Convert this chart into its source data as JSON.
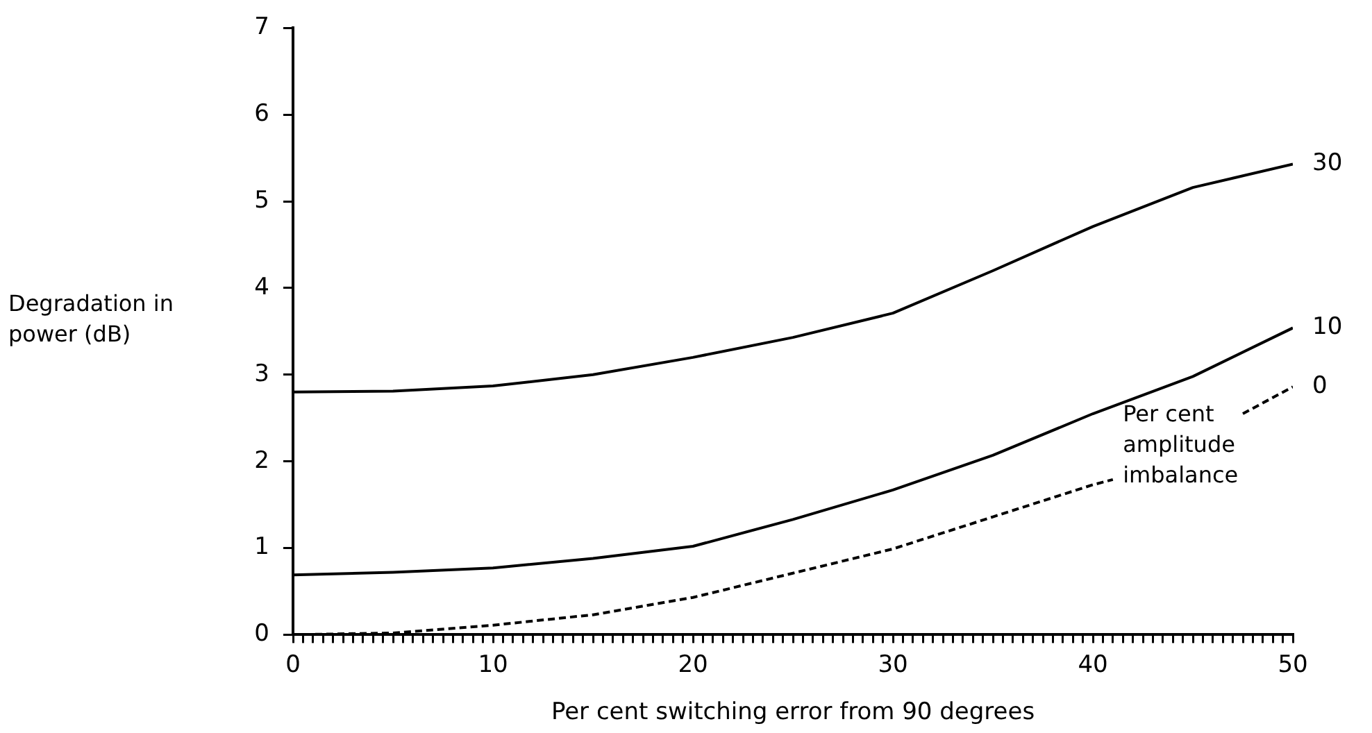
{
  "chart_data": {
    "type": "line",
    "xlabel": "Per cent switching error from 90 degrees",
    "ylabel": "Degradation in power (dB)",
    "xlim": [
      0,
      50
    ],
    "ylim": [
      0,
      7
    ],
    "yticks": [
      0,
      1,
      2,
      3,
      4,
      5,
      6,
      7
    ],
    "xticks": [
      0,
      {
        "value": 0.5,
        "label": null
      },
      {
        "value": 1,
        "label": null
      },
      {
        "value": 1.5,
        "label": null
      },
      {
        "value": 2,
        "label": null
      },
      {
        "value": 2.5,
        "label": null
      },
      {
        "value": 3,
        "label": null
      },
      {
        "value": 3.5,
        "label": null
      },
      {
        "value": 4,
        "label": null
      },
      {
        "value": 4.5,
        "label": null
      },
      {
        "value": 5,
        "label": null
      },
      {
        "value": 5.5,
        "label": null
      },
      {
        "value": 6,
        "label": null
      },
      {
        "value": 6.5,
        "label": null
      },
      {
        "value": 7,
        "label": null
      },
      {
        "value": 7.5,
        "label": null
      },
      {
        "value": 8,
        "label": null
      },
      {
        "value": 8.5,
        "label": null
      },
      {
        "value": 9,
        "label": null
      },
      {
        "value": 9.5,
        "label": null
      },
      10,
      {
        "value": 10.5,
        "label": null
      },
      {
        "value": 11,
        "label": null
      },
      {
        "value": 11.5,
        "label": null
      },
      {
        "value": 12,
        "label": null
      },
      {
        "value": 12.5,
        "label": null
      },
      {
        "value": 13,
        "label": null
      },
      {
        "value": 13.5,
        "label": null
      },
      {
        "value": 14,
        "label": null
      },
      {
        "value": 14.5,
        "label": null
      },
      {
        "value": 15,
        "label": null
      },
      {
        "value": 15.5,
        "label": null
      },
      {
        "value": 16,
        "label": null
      },
      {
        "value": 16.5,
        "label": null
      },
      {
        "value": 17,
        "label": null
      },
      {
        "value": 17.5,
        "label": null
      },
      {
        "value": 18,
        "label": null
      },
      {
        "value": 18.5,
        "label": null
      },
      {
        "value": 19,
        "label": null
      },
      {
        "value": 19.5,
        "label": null
      },
      20,
      {
        "value": 20.5,
        "label": null
      },
      {
        "value": 21,
        "label": null
      },
      {
        "value": 21.5,
        "label": null
      },
      {
        "value": 22,
        "label": null
      },
      {
        "value": 22.5,
        "label": null
      },
      {
        "value": 23,
        "label": null
      },
      {
        "value": 23.5,
        "label": null
      },
      {
        "value": 24,
        "label": null
      },
      {
        "value": 24.5,
        "label": null
      },
      {
        "value": 25,
        "label": null
      },
      {
        "value": 25.5,
        "label": null
      },
      {
        "value": 26,
        "label": null
      },
      {
        "value": 26.5,
        "label": null
      },
      {
        "value": 27,
        "label": null
      },
      {
        "value": 27.5,
        "label": null
      },
      {
        "value": 28,
        "label": null
      },
      {
        "value": 28.5,
        "label": null
      },
      {
        "value": 29,
        "label": null
      },
      {
        "value": 29.5,
        "label": null
      },
      30,
      {
        "value": 30.5,
        "label": null
      },
      {
        "value": 31,
        "label": null
      },
      {
        "value": 31.5,
        "label": null
      },
      {
        "value": 32,
        "label": null
      },
      {
        "value": 32.5,
        "label": null
      },
      {
        "value": 33,
        "label": null
      },
      {
        "value": 33.5,
        "label": null
      },
      {
        "value": 34,
        "label": null
      },
      {
        "value": 34.5,
        "label": null
      },
      {
        "value": 35,
        "label": null
      },
      {
        "value": 35.5,
        "label": null
      },
      {
        "value": 36,
        "label": null
      },
      {
        "value": 36.5,
        "label": null
      },
      {
        "value": 37,
        "label": null
      },
      {
        "value": 37.5,
        "label": null
      },
      {
        "value": 38,
        "label": null
      },
      {
        "value": 38.5,
        "label": null
      },
      {
        "value": 39,
        "label": null
      },
      {
        "value": 39.5,
        "label": null
      },
      40,
      {
        "value": 40.5,
        "label": null
      },
      {
        "value": 41,
        "label": null
      },
      {
        "value": 41.5,
        "label": null
      },
      {
        "value": 42,
        "label": null
      },
      {
        "value": 42.5,
        "label": null
      },
      {
        "value": 43,
        "label": null
      },
      {
        "value": 43.5,
        "label": null
      },
      {
        "value": 44,
        "label": null
      },
      {
        "value": 44.5,
        "label": null
      },
      {
        "value": 45,
        "label": null
      },
      {
        "value": 45.5,
        "label": null
      },
      {
        "value": 46,
        "label": null
      },
      {
        "value": 46.5,
        "label": null
      },
      {
        "value": 47,
        "label": null
      },
      {
        "value": 47.5,
        "label": null
      },
      {
        "value": 48,
        "label": null
      },
      {
        "value": 48.5,
        "label": null
      },
      {
        "value": 49,
        "label": null
      },
      {
        "value": 49.5,
        "label": null
      },
      50
    ],
    "grid": false,
    "legend": false,
    "marker": "none",
    "annotations": [
      "Per cent amplitude imbalance"
    ],
    "series": [
      {
        "name": "30",
        "color": "#000000",
        "line_style": "solid",
        "x": [
          0,
          5,
          10,
          15,
          20,
          25,
          30,
          35,
          40,
          45,
          50
        ],
        "values": [
          2.8,
          2.81,
          2.87,
          3.0,
          3.2,
          3.43,
          3.71,
          4.2,
          4.71,
          5.16,
          5.43
        ]
      },
      {
        "name": "10",
        "color": "#000000",
        "line_style": "solid",
        "x": [
          0,
          5,
          10,
          15,
          20,
          25,
          30,
          35,
          40,
          45,
          50
        ],
        "values": [
          0.69,
          0.72,
          0.77,
          0.88,
          1.02,
          1.33,
          1.67,
          2.07,
          2.55,
          2.98,
          3.54
        ]
      },
      {
        "name": "0",
        "color": "#000000",
        "line_style": "dashed",
        "x": [
          0,
          5,
          10,
          15,
          20,
          25,
          30,
          35,
          40,
          41,
          44,
          47.5,
          50
        ],
        "values": [
          0,
          0.02,
          0.11,
          0.23,
          0.43,
          0.71,
          0.99,
          1.36,
          1.73,
          1.79,
          null,
          2.55,
          2.86
        ]
      }
    ]
  }
}
